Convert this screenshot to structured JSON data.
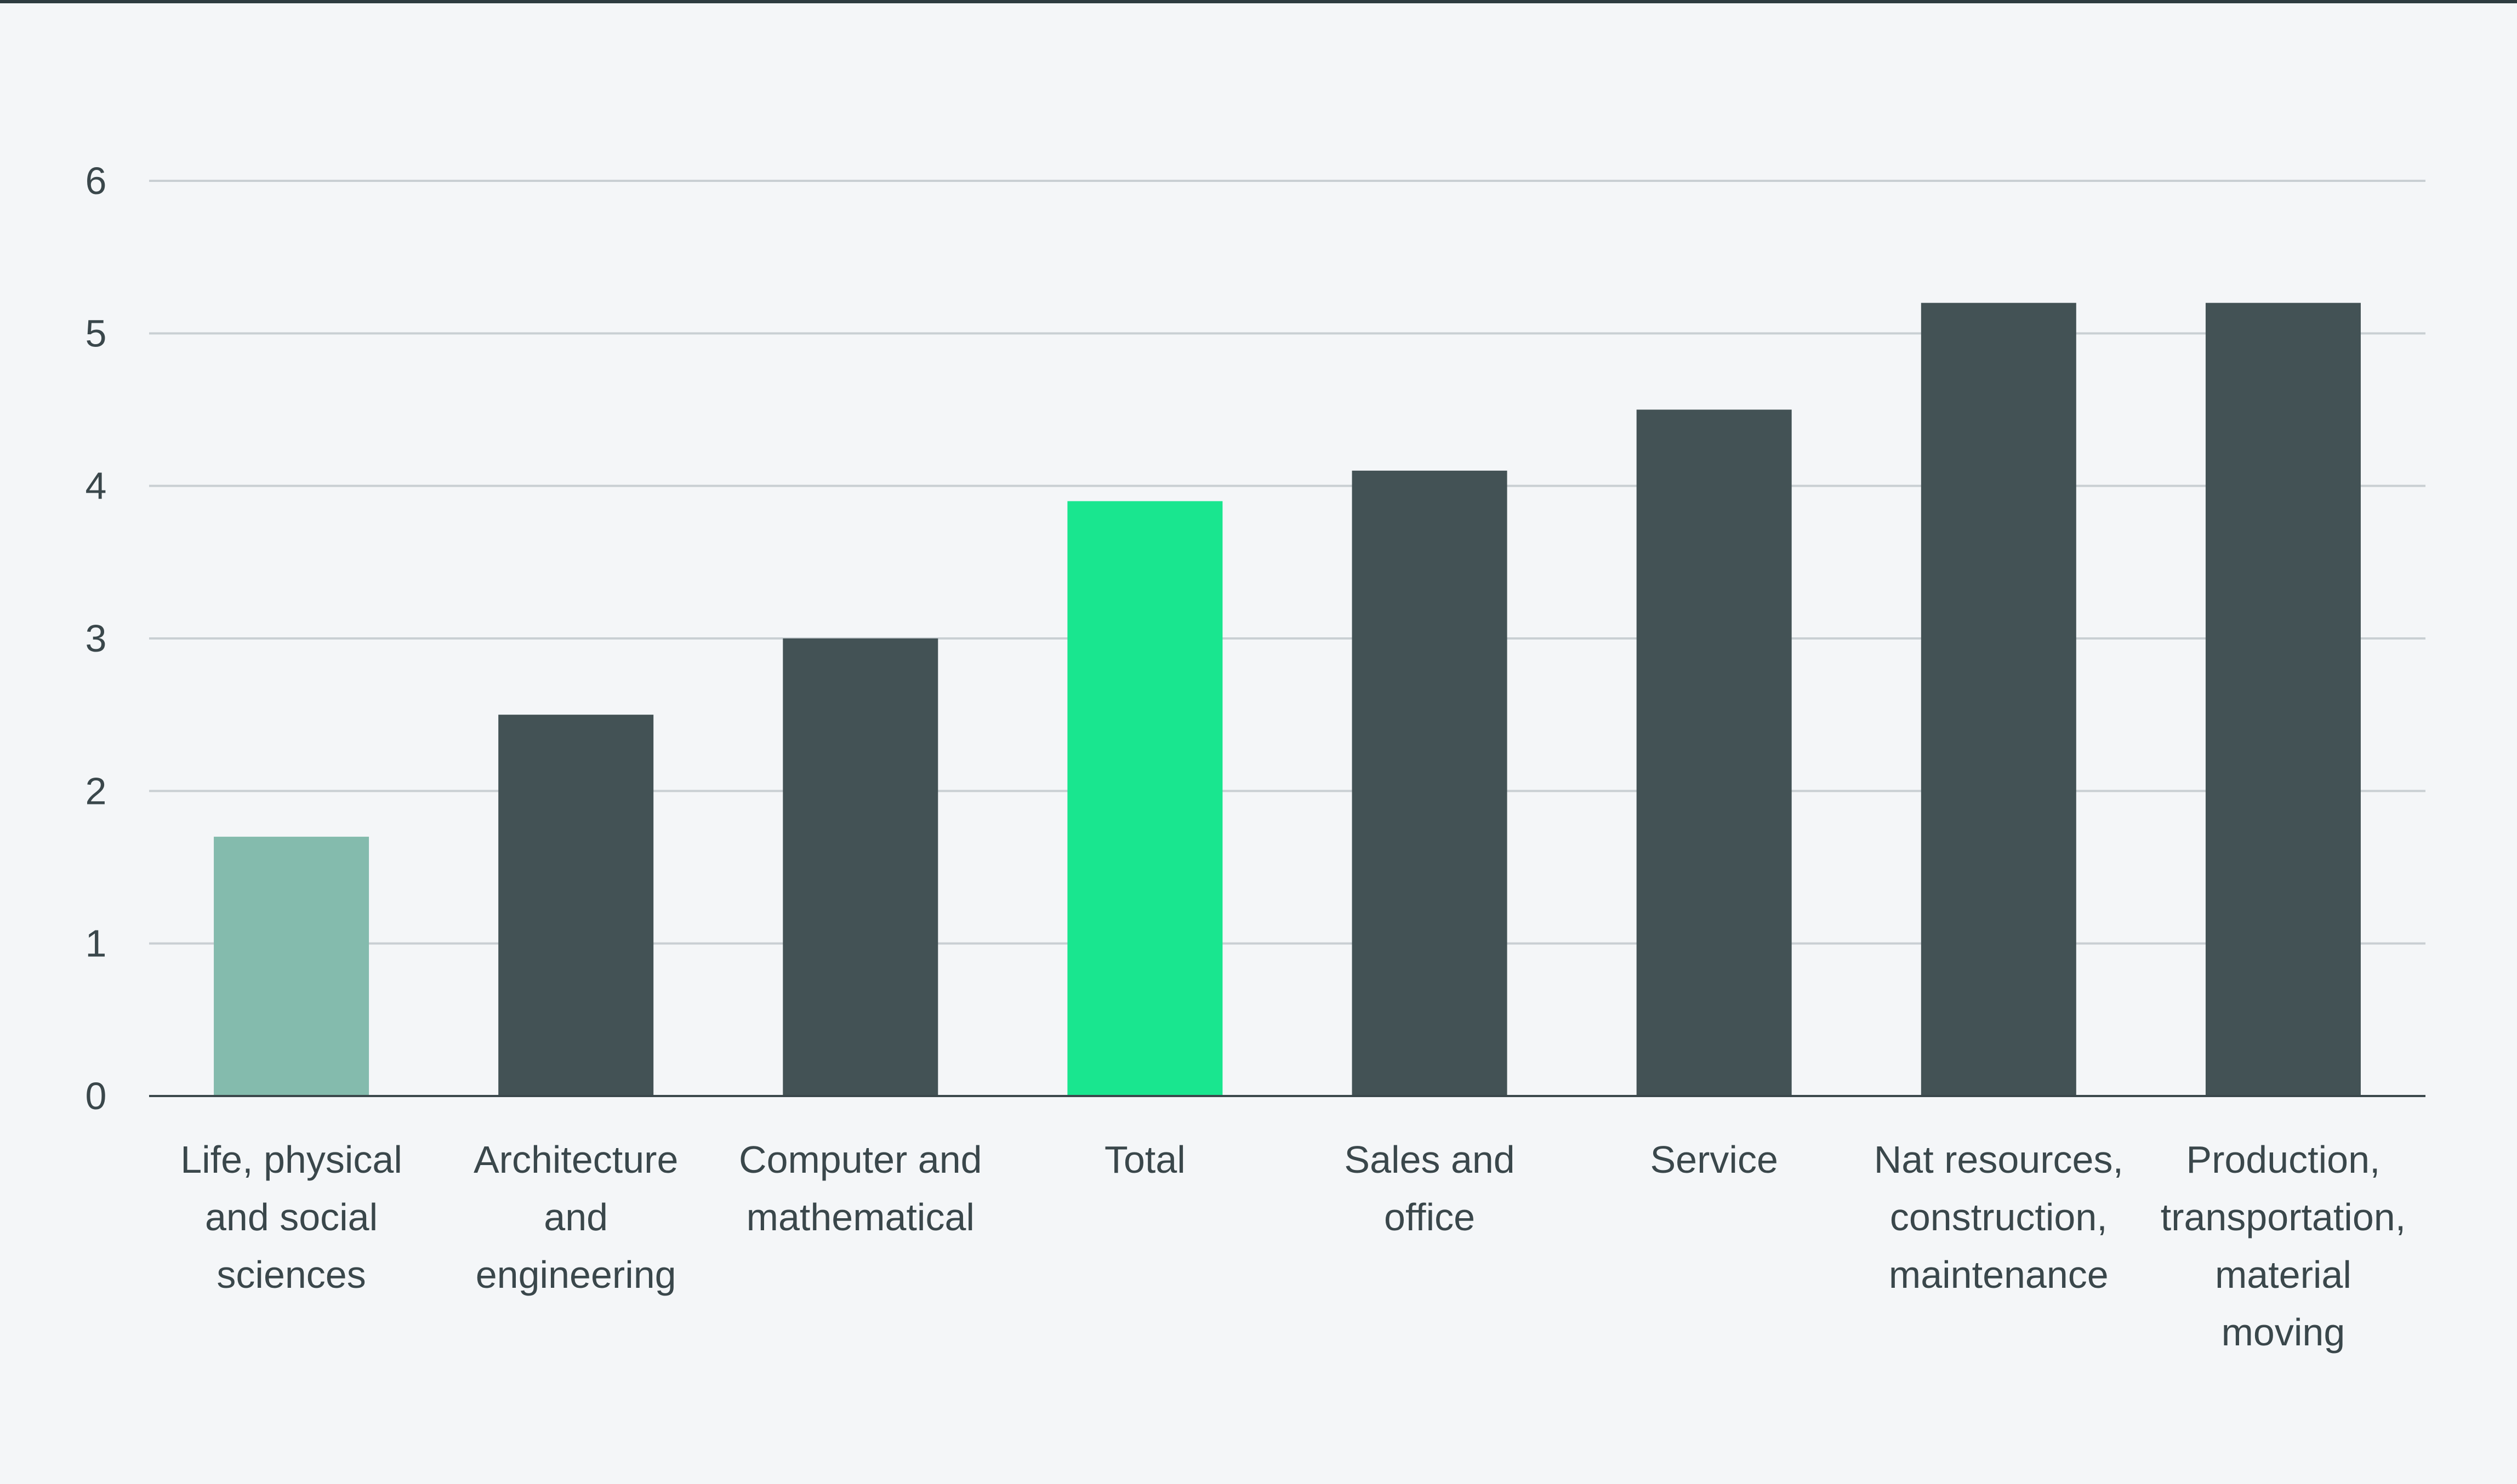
{
  "chart_data": {
    "type": "bar",
    "title": "",
    "xlabel": "",
    "ylabel": "",
    "ylim": [
      0,
      6
    ],
    "yticks": [
      0,
      1,
      2,
      3,
      4,
      5,
      6
    ],
    "grid": true,
    "categories": [
      [
        "Life, physical",
        "and social",
        "sciences"
      ],
      [
        "Architecture",
        "and",
        "engineering"
      ],
      [
        "Computer and",
        "mathematical"
      ],
      [
        "Total"
      ],
      [
        "Sales and",
        "office"
      ],
      [
        "Service"
      ],
      [
        "Nat resources,",
        "construction,",
        "maintenance"
      ],
      [
        "Production,",
        "transportation,",
        "material",
        "moving"
      ]
    ],
    "values": [
      1.7,
      2.5,
      3.0,
      3.9,
      4.1,
      4.5,
      5.2,
      5.2
    ],
    "colors": [
      "#84bbad",
      "#435255",
      "#435255",
      "#19e68f",
      "#435255",
      "#435255",
      "#435255",
      "#435255"
    ],
    "gridline_color": "#c9cfd3",
    "axis_color": "#3a474b"
  }
}
